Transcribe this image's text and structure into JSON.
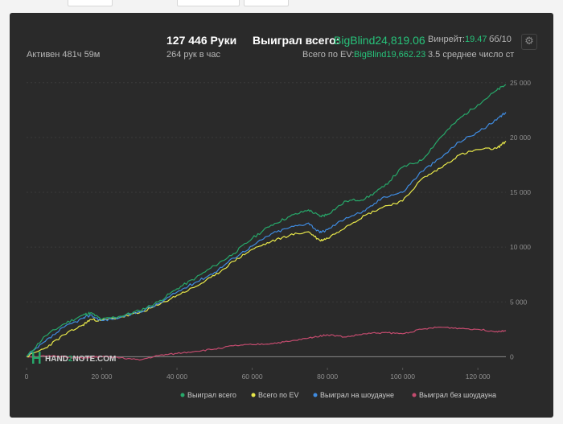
{
  "stats": {
    "active": "Активен 481ч 59м",
    "hands": "127 446 Руки",
    "hands_rate": "264 рук в час",
    "won_label": "Выиграл всего:",
    "won_value": "BigBlind24,819.06",
    "ev_label": "Всего по EV:",
    "ev_value": "BigBlind19,662.23",
    "winrate_label": "Винрейт:",
    "winrate_value": "19.47",
    "winrate_unit": "бб/10",
    "avg": "3.5 среднее число ст"
  },
  "icons": {
    "settings": "gear-icon"
  },
  "watermark": {
    "text_pre": "HAND",
    "text_num": "2",
    "text_post": "NOTE.COM"
  },
  "colors": {
    "panel_bg": "#2a2a2a",
    "green": "#27a86a",
    "yellow": "#e8e84a",
    "blue": "#3f8be0",
    "pink": "#c34b6e",
    "value_green": "#27c27a"
  },
  "chart_data": {
    "type": "line",
    "title": "",
    "xlabel": "",
    "ylabel": "",
    "xlim": [
      0,
      127446
    ],
    "ylim": [
      -1000,
      25500
    ],
    "x_ticks": [
      0,
      20000,
      40000,
      60000,
      80000,
      100000,
      120000
    ],
    "x_tick_labels": [
      "0",
      "20 000",
      "40 000",
      "60 000",
      "80 000",
      "100 000",
      "120 000"
    ],
    "y_ticks": [
      0,
      5000,
      10000,
      15000,
      20000,
      25000
    ],
    "y_tick_labels": [
      "0",
      "5 000",
      "10 000",
      "15 000",
      "20 000",
      "25 000"
    ],
    "grid": true,
    "legend_position": "bottom-right",
    "x": [
      0,
      5000,
      10000,
      15000,
      17000,
      20000,
      25000,
      30000,
      35000,
      40000,
      45000,
      50000,
      55000,
      60000,
      65000,
      70000,
      75000,
      78000,
      80000,
      85000,
      90000,
      95000,
      100000,
      105000,
      110000,
      115000,
      120000,
      125000,
      127446
    ],
    "series": [
      {
        "name": "Выиграл всего",
        "color": "#27a86a",
        "values": [
          0,
          1900,
          3000,
          3800,
          4000,
          3400,
          3700,
          4200,
          5000,
          6200,
          7200,
          8300,
          9400,
          10800,
          12000,
          12800,
          13400,
          12800,
          13000,
          14200,
          14400,
          15500,
          17300,
          17900,
          20000,
          21700,
          23000,
          24300,
          24819
        ]
      },
      {
        "name": "Всего по EV",
        "color": "#e8e84a",
        "values": [
          0,
          800,
          2000,
          2900,
          3400,
          3300,
          3600,
          4000,
          4700,
          5600,
          6400,
          7400,
          8700,
          9800,
          10500,
          11100,
          11400,
          10600,
          10800,
          11900,
          12900,
          13700,
          14200,
          16200,
          17200,
          18400,
          18900,
          19000,
          19662
        ]
      },
      {
        "name": "Выиграл на шоудауне",
        "color": "#3f8be0",
        "values": [
          0,
          1400,
          2700,
          3500,
          3800,
          3300,
          3600,
          4100,
          4800,
          5900,
          6800,
          7700,
          9000,
          10100,
          11200,
          11800,
          12200,
          11300,
          11600,
          12700,
          13300,
          14600,
          15000,
          16900,
          18100,
          19600,
          20500,
          21600,
          22300
        ]
      },
      {
        "name": "Выиграл без шоудауна",
        "color": "#c34b6e",
        "values": [
          0,
          50,
          20,
          -150,
          -50,
          0,
          -100,
          -300,
          100,
          300,
          500,
          700,
          1000,
          1100,
          1200,
          1400,
          1700,
          1900,
          2000,
          1800,
          2100,
          2200,
          2100,
          2500,
          2700,
          2600,
          2500,
          2300,
          2400
        ]
      }
    ]
  }
}
